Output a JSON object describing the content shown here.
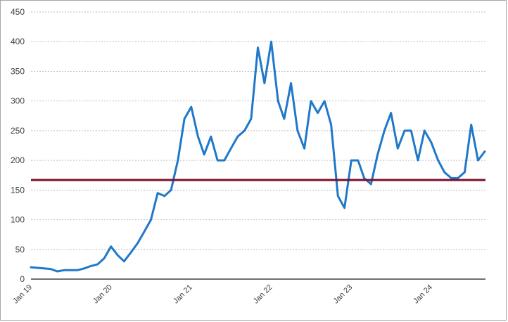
{
  "chart_data": {
    "type": "line",
    "title": "",
    "xlabel": "",
    "ylabel": "",
    "ylim": [
      0,
      450
    ],
    "yticks": [
      "0",
      "50",
      "100",
      "150",
      "200",
      "250",
      "300",
      "350",
      "400",
      "450"
    ],
    "xticks": [
      "Jan 19",
      "Jan 20",
      "Jan 21",
      "Jan 22",
      "Jan 23",
      "Jan 24"
    ],
    "grid": true,
    "colors": {
      "series": "#1f78c9",
      "reference": "#7b0f2b",
      "axis": "#404040",
      "grid": "#bfbfbf"
    },
    "series": [
      {
        "x": [
          "2019-01-01",
          "2019-02-01",
          "2019-03-01",
          "2019-04-01",
          "2019-05-01",
          "2019-06-01",
          "2019-07-01",
          "2019-08-01",
          "2019-09-01",
          "2019-10-01",
          "2019-11-01",
          "2019-12-01",
          "2020-01-01",
          "2020-02-01",
          "2020-03-01",
          "2020-04-01",
          "2020-05-01",
          "2020-06-01",
          "2020-07-01",
          "2020-08-01",
          "2020-09-01",
          "2020-10-01",
          "2020-11-01",
          "2020-12-01",
          "2021-01-01",
          "2021-02-01",
          "2021-03-01",
          "2021-04-01",
          "2021-05-01",
          "2021-06-01",
          "2021-07-01",
          "2021-08-01",
          "2021-09-01",
          "2021-10-01",
          "2021-11-01",
          "2021-12-01",
          "2022-01-01",
          "2022-02-01",
          "2022-03-01",
          "2022-04-01",
          "2022-05-01",
          "2022-06-01",
          "2022-07-01",
          "2022-08-01",
          "2022-09-01",
          "2022-10-01",
          "2022-11-01",
          "2022-12-01",
          "2023-01-01",
          "2023-02-01",
          "2023-03-01",
          "2023-04-01",
          "2023-05-01",
          "2023-06-01",
          "2023-07-01",
          "2023-08-01",
          "2023-09-01",
          "2023-10-01",
          "2023-11-01",
          "2023-12-01",
          "2024-01-01",
          "2024-02-01",
          "2024-03-01",
          "2024-04-01",
          "2024-05-01",
          "2024-06-01",
          "2024-07-01",
          "2024-08-01",
          "2024-09-01"
        ],
        "values": [
          20,
          19,
          18,
          17,
          13,
          15,
          15,
          15,
          18,
          22,
          25,
          35,
          55,
          40,
          30,
          45,
          60,
          80,
          100,
          145,
          140,
          150,
          200,
          270,
          290,
          240,
          210,
          240,
          200,
          200,
          220,
          240,
          250,
          270,
          390,
          330,
          400,
          300,
          270,
          330,
          250,
          220,
          300,
          280,
          300,
          260,
          140,
          120,
          200,
          200,
          170,
          160,
          210,
          250,
          280,
          220,
          250,
          250,
          200,
          250,
          230,
          200,
          180,
          170,
          170,
          180,
          260,
          200,
          215
        ]
      }
    ],
    "reference_line": {
      "value": 167
    }
  }
}
